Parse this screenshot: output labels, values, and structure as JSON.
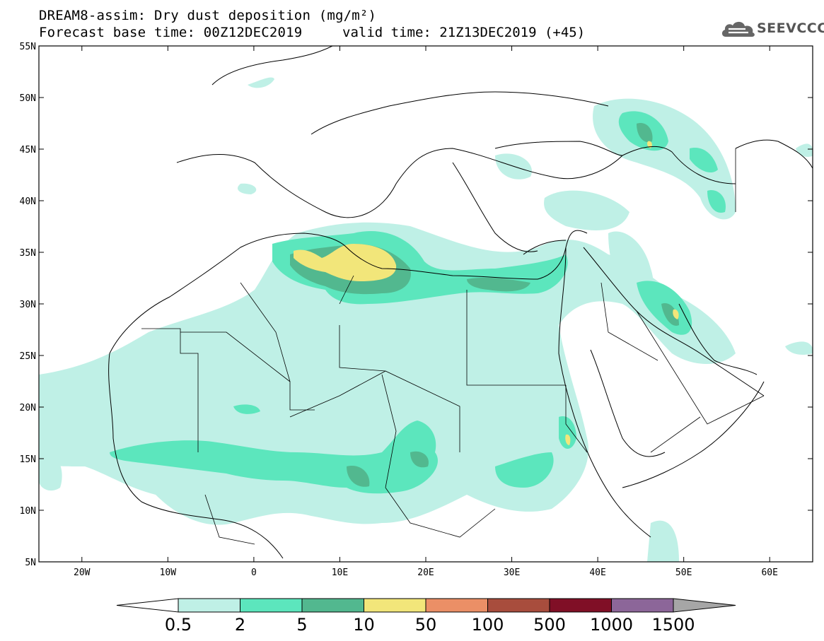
{
  "title": {
    "line1": "DREAM8-assim: Dry dust deposition (mg/m²)",
    "line2": "Forecast base time: 00Z12DEC2019",
    "valid": "valid time: 21Z13DEC2019 (+45)"
  },
  "logo": {
    "text": "SEEVCCC",
    "icon": "cloud-icon"
  },
  "map": {
    "lon_range": [
      -25,
      65
    ],
    "lat_range": [
      5,
      55
    ],
    "lon_ticks": [
      {
        "value": -20,
        "label": "20W"
      },
      {
        "value": -10,
        "label": "10W"
      },
      {
        "value": 0,
        "label": "0"
      },
      {
        "value": 10,
        "label": "10E"
      },
      {
        "value": 20,
        "label": "20E"
      },
      {
        "value": 30,
        "label": "30E"
      },
      {
        "value": 40,
        "label": "40E"
      },
      {
        "value": 50,
        "label": "50E"
      },
      {
        "value": 60,
        "label": "60E"
      }
    ],
    "lat_ticks": [
      {
        "value": 55,
        "label": "55N"
      },
      {
        "value": 50,
        "label": "50N"
      },
      {
        "value": 45,
        "label": "45N"
      },
      {
        "value": 40,
        "label": "40N"
      },
      {
        "value": 35,
        "label": "35N"
      },
      {
        "value": 30,
        "label": "30N"
      },
      {
        "value": 25,
        "label": "25N"
      },
      {
        "value": 20,
        "label": "20N"
      },
      {
        "value": 15,
        "label": "15N"
      },
      {
        "value": 10,
        "label": "10N"
      },
      {
        "value": 5,
        "label": "5N"
      }
    ]
  },
  "colorbar": {
    "levels": [
      "0.5",
      "2",
      "5",
      "10",
      "50",
      "100",
      "500",
      "1000",
      "1500"
    ],
    "colors": [
      "#ffffff",
      "#bff0e6",
      "#5ce6bd",
      "#52b88f",
      "#f2e67a",
      "#eb8f66",
      "#a84d3d",
      "#800f26",
      "#8c6699",
      "#a6a6a6"
    ]
  }
}
